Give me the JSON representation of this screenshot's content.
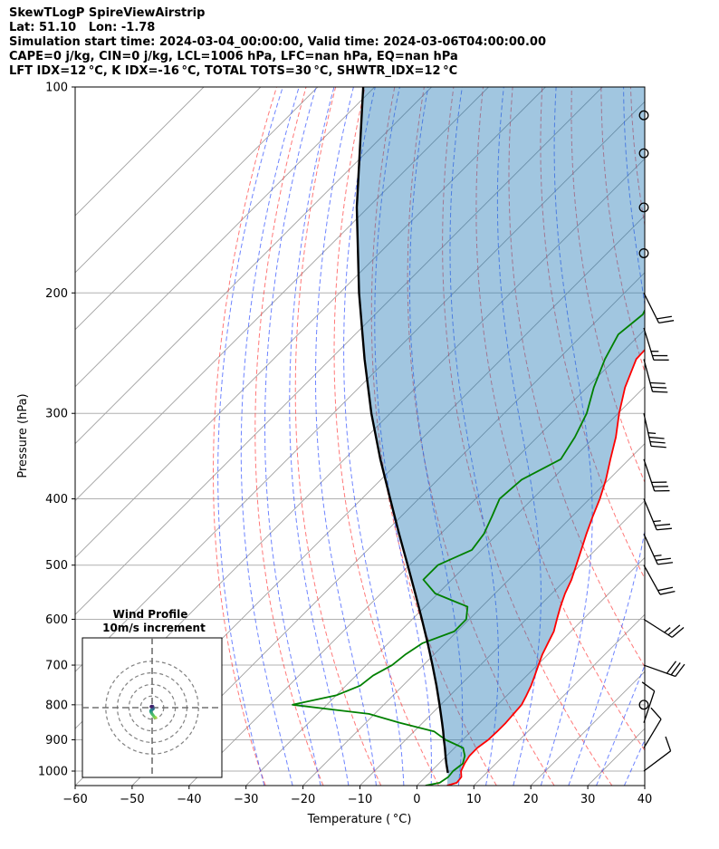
{
  "header": {
    "line1": "SkewTLogP SpireViewAirstrip",
    "line2": "Lat: 51.10   Lon: -1.78",
    "line3": "Simulation start time: 2024-03-04_00:00:00, Valid time: 2024-03-06T04:00:00.00",
    "line4": "CAPE=0 j/kg, CIN=0 j/kg, LCL=1006 hPa, LFC=nan hPa, EQ=nan hPa",
    "line5": "LFT IDX=12 °C, K IDX=-16 °C, TOTAL TOTS=30 °C, SHWTR_IDX=12 °C"
  },
  "chart_data": {
    "type": "line",
    "subtype": "skew-t log-p",
    "xlabel": "Temperature ( °C)",
    "ylabel": "Pressure (hPa)",
    "xlim": [
      -60,
      40
    ],
    "ylim": [
      1050,
      100
    ],
    "y_scale": "log",
    "x_ticks": [
      "−60",
      "−50",
      "−40",
      "−30",
      "−20",
      "−10",
      "0",
      "10",
      "20",
      "30",
      "40"
    ],
    "y_ticks": [
      "100",
      "200",
      "300",
      "400",
      "500",
      "600",
      "700",
      "800",
      "900",
      "1000"
    ],
    "grid": true,
    "series": [
      {
        "key": "temperature",
        "color": "#ff0000",
        "points": [
          [
            1050,
            5.3
          ],
          [
            1040,
            6.5
          ],
          [
            1020,
            6.3
          ],
          [
            1000,
            5.2
          ],
          [
            975,
            4.5
          ],
          [
            950,
            4.0
          ],
          [
            925,
            4.0
          ],
          [
            900,
            4.5
          ],
          [
            875,
            4.6
          ],
          [
            850,
            4.6
          ],
          [
            825,
            4.4
          ],
          [
            800,
            4.2
          ],
          [
            775,
            3.4
          ],
          [
            750,
            2.5
          ],
          [
            725,
            1.4
          ],
          [
            700,
            0.2
          ],
          [
            675,
            -1.0
          ],
          [
            650,
            -2.0
          ],
          [
            625,
            -3.0
          ],
          [
            600,
            -4.6
          ],
          [
            575,
            -6.2
          ],
          [
            550,
            -7.7
          ],
          [
            525,
            -9.0
          ],
          [
            500,
            -10.7
          ],
          [
            475,
            -12.5
          ],
          [
            450,
            -14.4
          ],
          [
            425,
            -16.3
          ],
          [
            400,
            -18.2
          ],
          [
            375,
            -20.5
          ],
          [
            350,
            -23.3
          ],
          [
            325,
            -26.2
          ],
          [
            300,
            -29.8
          ],
          [
            275,
            -33.3
          ],
          [
            250,
            -36.3
          ],
          [
            240,
            -36.5
          ],
          [
            230,
            -36.2
          ],
          [
            220,
            -35.6
          ],
          [
            210,
            -35.5
          ],
          [
            200,
            -35.7
          ],
          [
            190,
            -35.8
          ],
          [
            180,
            -35.5
          ],
          [
            170,
            -36.5
          ],
          [
            160,
            -37.3
          ],
          [
            150,
            -38.6
          ],
          [
            140,
            -40.2
          ],
          [
            130,
            -42.0
          ],
          [
            120,
            -44.2
          ],
          [
            110,
            -46.8
          ],
          [
            100,
            -49.5
          ]
        ]
      },
      {
        "key": "dewpoint",
        "color": "#008000",
        "points": [
          [
            1050,
            1.5
          ],
          [
            1040,
            3.5
          ],
          [
            1020,
            4.0
          ],
          [
            1000,
            3.8
          ],
          [
            975,
            4.2
          ],
          [
            950,
            3.2
          ],
          [
            925,
            1.5
          ],
          [
            900,
            -3.0
          ],
          [
            875,
            -6.5
          ],
          [
            850,
            -14.0
          ],
          [
            825,
            -21.0
          ],
          [
            800,
            -36.0
          ],
          [
            775,
            -30.0
          ],
          [
            750,
            -27.5
          ],
          [
            725,
            -27.0
          ],
          [
            700,
            -25.5
          ],
          [
            675,
            -25.0
          ],
          [
            650,
            -24.0
          ],
          [
            625,
            -20.5
          ],
          [
            600,
            -20.5
          ],
          [
            575,
            -22.5
          ],
          [
            550,
            -30.5
          ],
          [
            525,
            -35.0
          ],
          [
            500,
            -35.0
          ],
          [
            475,
            -31.7
          ],
          [
            450,
            -32.4
          ],
          [
            425,
            -34.0
          ],
          [
            400,
            -35.8
          ],
          [
            375,
            -35.3
          ],
          [
            350,
            -32.0
          ],
          [
            325,
            -33.4
          ],
          [
            300,
            -35.5
          ],
          [
            275,
            -38.8
          ],
          [
            250,
            -41.8
          ],
          [
            230,
            -43.8
          ],
          [
            215,
            -43.0
          ],
          [
            200,
            -45.0
          ],
          [
            190,
            -47.0
          ],
          [
            175,
            -50.5
          ],
          [
            165,
            -53.3
          ],
          [
            150,
            -53.1
          ],
          [
            130,
            -54.3
          ],
          [
            110,
            -56.0
          ],
          [
            100,
            -57.5
          ]
        ]
      },
      {
        "key": "parcel",
        "color": "#000000",
        "points": [
          [
            1006,
            3.2
          ],
          [
            975,
            1.3
          ],
          [
            950,
            -0.2
          ],
          [
            925,
            -1.7
          ],
          [
            900,
            -3.3
          ],
          [
            875,
            -4.9
          ],
          [
            850,
            -6.6
          ],
          [
            800,
            -10.2
          ],
          [
            750,
            -14.1
          ],
          [
            700,
            -18.4
          ],
          [
            650,
            -23.1
          ],
          [
            600,
            -28.3
          ],
          [
            550,
            -34.0
          ],
          [
            500,
            -40.3
          ],
          [
            450,
            -47.3
          ],
          [
            400,
            -55.0
          ],
          [
            350,
            -63.7
          ],
          [
            300,
            -73.3
          ],
          [
            250,
            -84.0
          ],
          [
            200,
            -96.6
          ],
          [
            150,
            -112.0
          ],
          [
            100,
            -132.0
          ]
        ]
      }
    ],
    "wind_barbs": [
      {
        "p": 1000,
        "u": -4,
        "v": -3
      },
      {
        "p": 925,
        "u": -3,
        "v": -5
      },
      {
        "p": 850,
        "u": -2,
        "v": -6
      },
      {
        "p": 800,
        "u": 0,
        "v": 0
      },
      {
        "p": 700,
        "u": -14,
        "v": 5
      },
      {
        "p": 600,
        "u": -11,
        "v": 7
      },
      {
        "p": 500,
        "u": -5,
        "v": 9
      },
      {
        "p": 450,
        "u": -5,
        "v": 11
      },
      {
        "p": 400,
        "u": -5,
        "v": 12
      },
      {
        "p": 350,
        "u": -5,
        "v": 15
      },
      {
        "p": 300,
        "u": -4,
        "v": 18
      },
      {
        "p": 250,
        "u": -4,
        "v": 15
      },
      {
        "p": 225,
        "u": -4,
        "v": 13
      },
      {
        "p": 200,
        "u": -5,
        "v": 10
      },
      {
        "p": 175,
        "u": 0,
        "v": 0
      },
      {
        "p": 150,
        "u": 0,
        "v": 0
      },
      {
        "p": 125,
        "u": 0,
        "v": 0
      },
      {
        "p": 110,
        "u": 0,
        "v": 0
      }
    ],
    "hodograph": {
      "title": "Wind Profile",
      "subtitle": "10m/s increment",
      "ring_step": 10,
      "ring_count": 4,
      "points": [
        [
          3.0,
          -8.5
        ],
        [
          2.6,
          -8.6
        ],
        [
          2.0,
          -8.2
        ],
        [
          1.5,
          -7.5
        ],
        [
          1.0,
          -6.8
        ],
        [
          0.4,
          -6.0
        ],
        [
          -0.1,
          -5.3
        ],
        [
          -0.6,
          -4.5
        ],
        [
          -1.0,
          -3.8
        ],
        [
          -1.2,
          -3.0
        ],
        [
          -1.0,
          -2.4
        ],
        [
          -0.5,
          -1.9
        ],
        [
          0.2,
          -1.6
        ],
        [
          0.6,
          -1.4
        ],
        [
          0.9,
          -1.0
        ],
        [
          0.7,
          -0.4
        ],
        [
          0.5,
          0.0
        ],
        [
          0.4,
          0.5
        ],
        [
          0.6,
          0.8
        ],
        [
          0.5,
          1.1
        ],
        [
          0.1,
          1.2
        ],
        [
          -0.4,
          1.2
        ],
        [
          -0.8,
          1.0
        ],
        [
          -0.9,
          0.7
        ]
      ]
    }
  }
}
